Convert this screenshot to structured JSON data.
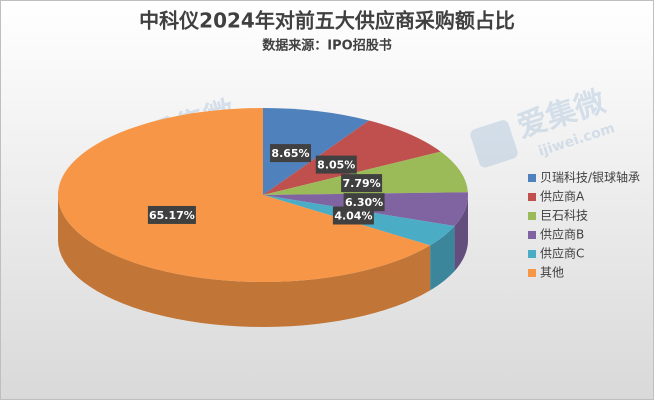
{
  "chart_data": {
    "type": "pie3d",
    "title": "中科仪2024年对前五大供应商采购额占比",
    "subtitle": "数据来源：IPO招股书",
    "categories": [
      "贝瑞科技/银球轴承",
      "供应商A",
      "巨石科技",
      "供应商B",
      "供应商C",
      "其他"
    ],
    "values": [
      8.65,
      8.05,
      7.79,
      6.3,
      4.04,
      65.17
    ],
    "value_labels": [
      "8.65%",
      "8.05%",
      "7.79%",
      "6.30%",
      "4.04%",
      "65.17%"
    ],
    "colors": [
      "#4f81bd",
      "#c0504d",
      "#9bbb59",
      "#8064a2",
      "#4bacc6",
      "#f79646"
    ],
    "legend": "right"
  },
  "watermark": {
    "name": "爱集微",
    "site": "ijiwei.com"
  }
}
